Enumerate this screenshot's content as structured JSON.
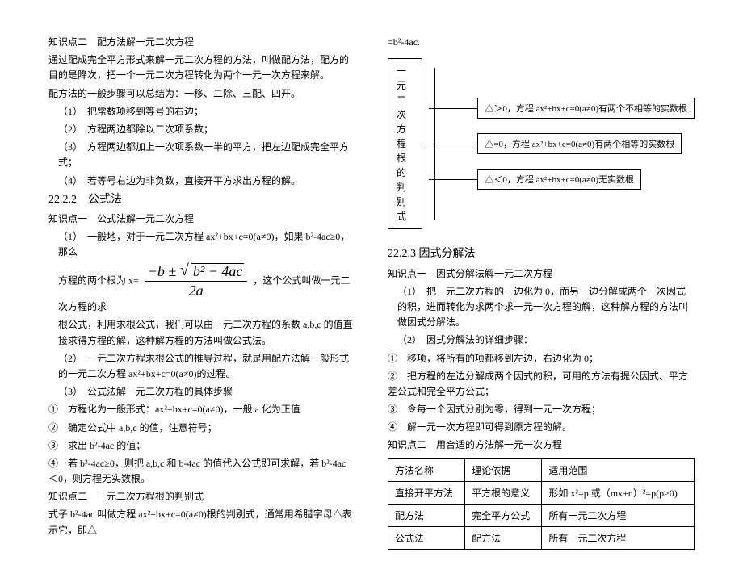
{
  "left": {
    "h1": "知识点二　配方法解一元二次方程",
    "p1": "通过配成完全平方形式来解一元二次方程的方法，叫做配方法，配方的目的是降次，把一个一元二次方程转化为两个一元一次方程来解。",
    "p2": "配方法的一般步骤可以总结为：一移、二除、三配、四开。",
    "li1": "（1）　把常数项移到等号的右边；",
    "li2": "（2）　方程两边都除以二次项系数；",
    "li3": "（3）　方程两边都加上一次项系数一半的平方，把左边配成完全平方式；",
    "li4": "（4）　若等号右边为非负数，直接开平方求出方程的解。",
    "sec2": "22.2.2　公式法",
    "kp1": "知识点一　公式法解一元二次方程",
    "g1a": "（1）　一般地，对于一元二次方程 ax²+bx+c=0(a≠0)，如果 b²-4ac≥0，那么",
    "g1b_pre": "方程的两个根为 x=",
    "g1b_post": "，这个公式叫做一元二次方程的求",
    "g1c": "根公式，利用求根公式，我们可以由一元二次方程的系数 a,b,c 的值直接求得方程的解，这种解方程的方法叫做公式法。",
    "g2": "（2）　一元二次方程求根公式的推导过程，就是用配方法解一般形式的一元二次方程 ax²+bx+c=0(a≠0)的过程。",
    "g3": "（3）　公式法解一元二次方程的具体步骤",
    "s1": "①　方程化为一般形式：ax²+bx+c=0(a≠0)，一般 a 化为正值",
    "s2": "②　确定公式中 a,b,c 的值，注意符号；",
    "s3": "③　求出 b²-4ac 的值；",
    "s4": "④　若 b²-4ac≥0，则把 a,b,c 和 b-4ac 的值代入公式即可求解，若 b²-4ac＜0，则方程无实数根。",
    "kp2": "知识点二　一元二次方程根的判别式",
    "kp2p": "式子 b²-4ac 叫做方程 ax²+bx+c=0(a≠0)根的判别式，通常用希腊字母△表示它，即△"
  },
  "right": {
    "eq": "=b²-4ac.",
    "diagram": {
      "root_l1": "一元二次方程",
      "root_l2": "根的判别式",
      "b1": "△＞0，方程 ax²+bx+c=0(a≠0)有两个不相等的实数根",
      "b2": "△=0，方程 ax²+bx+c=0(a≠0)有两个相等的实数根",
      "b3": "△＜0，方程 ax²+bx+c=0(a≠0)无实数根"
    },
    "sec3": "22.2.3 因式分解法",
    "kp1": "知识点一　因式分解法解一元二次方程",
    "r1": "（1）　把一元二次方程的一边化为 0，而另一边分解成两个一次因式的积，进而转化为求两个求一元一次方程的解，这种解方程的方法叫做因式分解法。",
    "r2": "（2）　因式分解法的详细步骤：",
    "rs1": "①　移项，将所有的项都移到左边，右边化为 0；",
    "rs2": "②　把方程的左边分解成两个因式的积，可用的方法有提公因式、平方差公式和完全平方公式；",
    "rs3": "③　令每一个因式分别为零，得到一元一次方程；",
    "rs4": "④　解一元一次方程即可得到原方程的解。",
    "kp2": "知识点二　用合适的方法解一元一次方程",
    "table": {
      "h1": "方法名称",
      "h2": "理论依据",
      "h3": "适用范围",
      "r1c1": "直接开平方法",
      "r1c2": "平方根的意义",
      "r1c3": "形如 x²=p 或（mx+n）²=p(p≥0)",
      "r2c1": "配方法",
      "r2c2": "完全平方公式",
      "r2c3": "所有一元二次方程",
      "r3c1": "公式法",
      "r3c2": "配方法",
      "r3c3": "所有一元二次方程"
    }
  },
  "formula": {
    "num_a": "−b ± ",
    "num_sqrt": "b² − 4ac",
    "den": "2a"
  }
}
